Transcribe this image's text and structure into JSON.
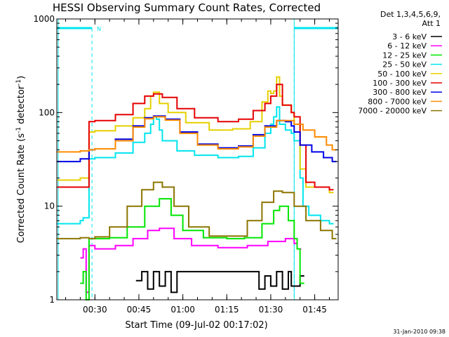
{
  "chart_data": {
    "type": "line",
    "title": "HESSI Observing Summary Count Rates, Corrected",
    "xlabel": "Start Time (09-Jul-02 00:17:02)",
    "ylabel_main": "Corrected Count Rate (s",
    "ylabel_sup1": "-1",
    "ylabel_mid": " detector",
    "ylabel_sup2": "-1",
    "ylabel_end": ")",
    "yscale": "log",
    "ylim": [
      1,
      1000
    ],
    "xlim_minutes": [
      0,
      96
    ],
    "x_ticks": [
      {
        "m": 13,
        "label": "00:30"
      },
      {
        "m": 28,
        "label": "00:45"
      },
      {
        "m": 43,
        "label": "01:00"
      },
      {
        "m": 58,
        "label": "01:15"
      },
      {
        "m": 73,
        "label": "01:30"
      },
      {
        "m": 88,
        "label": "01:45"
      }
    ],
    "y_ticks": [
      {
        "v": 1,
        "label": "1"
      },
      {
        "v": 10,
        "label": "10"
      },
      {
        "v": 100,
        "label": "100"
      },
      {
        "v": 1000,
        "label": "1000"
      }
    ],
    "legend_header": [
      "Det 1,3,4,5,6,9,",
      "Att 1"
    ],
    "timestamp": "31-Jan-2010 09:38",
    "night_marker": "N",
    "night_intervals": [
      [
        0,
        12
      ],
      [
        81,
        96
      ]
    ],
    "series": [
      {
        "name": "3 - 6 keV",
        "color": "#000000",
        "values": [
          {
            "m": 27,
            "v": 1.6
          },
          {
            "m": 29,
            "v": 2.0
          },
          {
            "m": 31,
            "v": 1.3
          },
          {
            "m": 33,
            "v": 2.0
          },
          {
            "m": 35,
            "v": 1.4
          },
          {
            "m": 37,
            "v": 2.0
          },
          {
            "m": 39,
            "v": 1.2
          },
          {
            "m": 41,
            "v": 2.0
          },
          {
            "m": 69,
            "v": 1.3
          },
          {
            "m": 71,
            "v": 1.8
          },
          {
            "m": 73,
            "v": 1.4
          },
          {
            "m": 75,
            "v": 2.0
          },
          {
            "m": 77,
            "v": 1.3
          },
          {
            "m": 79,
            "v": 2.0
          },
          {
            "m": 80,
            "v": 1.4
          },
          {
            "m": 83,
            "v": 1.8
          }
        ]
      },
      {
        "name": "6 - 12 keV",
        "color": "#ff00ff",
        "values": [
          {
            "m": 8,
            "v": 2.8
          },
          {
            "m": 9,
            "v": 3.5
          },
          {
            "m": 10,
            "v": 1.2
          },
          {
            "m": 11,
            "v": 3.8
          },
          {
            "m": 13,
            "v": 3.5
          },
          {
            "m": 20,
            "v": 3.8
          },
          {
            "m": 26,
            "v": 4.5
          },
          {
            "m": 31,
            "v": 5.5
          },
          {
            "m": 35,
            "v": 5.8
          },
          {
            "m": 40,
            "v": 4.5
          },
          {
            "m": 46,
            "v": 3.8
          },
          {
            "m": 55,
            "v": 3.6
          },
          {
            "m": 65,
            "v": 3.8
          },
          {
            "m": 72,
            "v": 4.2
          },
          {
            "m": 78,
            "v": 4.5
          },
          {
            "m": 81,
            "v": 4.0
          },
          {
            "m": 82,
            "v": 3.5
          }
        ]
      },
      {
        "name": "12 - 25 keV",
        "color": "#00e600",
        "values": [
          {
            "m": 8,
            "v": 1.5
          },
          {
            "m": 9,
            "v": 2.0
          },
          {
            "m": 10,
            "v": 1.0
          },
          {
            "m": 11,
            "v": 4.5
          },
          {
            "m": 13,
            "v": 4.5
          },
          {
            "m": 18,
            "v": 4.6
          },
          {
            "m": 24,
            "v": 6.0
          },
          {
            "m": 30,
            "v": 10.0
          },
          {
            "m": 35,
            "v": 12.0
          },
          {
            "m": 39,
            "v": 8.0
          },
          {
            "m": 43,
            "v": 5.5
          },
          {
            "m": 50,
            "v": 4.6
          },
          {
            "m": 58,
            "v": 4.5
          },
          {
            "m": 64,
            "v": 4.6
          },
          {
            "m": 70,
            "v": 6.5
          },
          {
            "m": 74,
            "v": 9.0
          },
          {
            "m": 76,
            "v": 10.0
          },
          {
            "m": 79,
            "v": 7.0
          },
          {
            "m": 81,
            "v": 4.5
          },
          {
            "m": 82,
            "v": 3.5
          },
          {
            "m": 83,
            "v": 1.5
          }
        ]
      },
      {
        "name": "25 - 50 keV",
        "color": "#00e5ee",
        "values": [
          {
            "m": 0,
            "v": 6.5
          },
          {
            "m": 8,
            "v": 7.0
          },
          {
            "m": 9,
            "v": 7.5
          },
          {
            "m": 11,
            "v": 32
          },
          {
            "m": 13,
            "v": 33
          },
          {
            "m": 20,
            "v": 37
          },
          {
            "m": 26,
            "v": 48
          },
          {
            "m": 30,
            "v": 60
          },
          {
            "m": 32,
            "v": 75
          },
          {
            "m": 33,
            "v": 90
          },
          {
            "m": 34,
            "v": 85
          },
          {
            "m": 35,
            "v": 65
          },
          {
            "m": 36,
            "v": 50
          },
          {
            "m": 41,
            "v": 39
          },
          {
            "m": 47,
            "v": 35
          },
          {
            "m": 55,
            "v": 33
          },
          {
            "m": 62,
            "v": 34
          },
          {
            "m": 67,
            "v": 42
          },
          {
            "m": 71,
            "v": 60
          },
          {
            "m": 73,
            "v": 75
          },
          {
            "m": 74,
            "v": 90
          },
          {
            "m": 75,
            "v": 115
          },
          {
            "m": 76,
            "v": 75
          },
          {
            "m": 78,
            "v": 65
          },
          {
            "m": 80,
            "v": 60
          },
          {
            "m": 81,
            "v": 50
          },
          {
            "m": 83,
            "v": 20
          },
          {
            "m": 84,
            "v": 10
          },
          {
            "m": 86,
            "v": 8
          },
          {
            "m": 90,
            "v": 7
          },
          {
            "m": 93,
            "v": 6.5
          }
        ]
      },
      {
        "name": "50 - 100 keV",
        "color": "#e6d000",
        "values": [
          {
            "m": 0,
            "v": 19
          },
          {
            "m": 8,
            "v": 20
          },
          {
            "m": 11,
            "v": 62
          },
          {
            "m": 13,
            "v": 64
          },
          {
            "m": 20,
            "v": 72
          },
          {
            "m": 26,
            "v": 88
          },
          {
            "m": 30,
            "v": 110
          },
          {
            "m": 32,
            "v": 150
          },
          {
            "m": 33,
            "v": 165
          },
          {
            "m": 35,
            "v": 125
          },
          {
            "m": 38,
            "v": 100
          },
          {
            "m": 44,
            "v": 78
          },
          {
            "m": 52,
            "v": 65
          },
          {
            "m": 60,
            "v": 67
          },
          {
            "m": 66,
            "v": 80
          },
          {
            "m": 70,
            "v": 130
          },
          {
            "m": 72,
            "v": 170
          },
          {
            "m": 73,
            "v": 160
          },
          {
            "m": 74,
            "v": 170
          },
          {
            "m": 75,
            "v": 240
          },
          {
            "m": 76,
            "v": 150
          },
          {
            "m": 77,
            "v": 120
          },
          {
            "m": 80,
            "v": 100
          },
          {
            "m": 81,
            "v": 75
          },
          {
            "m": 83,
            "v": 25
          },
          {
            "m": 85,
            "v": 16
          },
          {
            "m": 93,
            "v": 14
          }
        ]
      },
      {
        "name": "100 - 300 keV",
        "color": "#e60000",
        "values": [
          {
            "m": 0,
            "v": 16
          },
          {
            "m": 8,
            "v": 16
          },
          {
            "m": 11,
            "v": 80
          },
          {
            "m": 13,
            "v": 82
          },
          {
            "m": 20,
            "v": 95
          },
          {
            "m": 26,
            "v": 125
          },
          {
            "m": 30,
            "v": 150
          },
          {
            "m": 33,
            "v": 158
          },
          {
            "m": 36,
            "v": 145
          },
          {
            "m": 41,
            "v": 110
          },
          {
            "m": 47,
            "v": 88
          },
          {
            "m": 55,
            "v": 80
          },
          {
            "m": 62,
            "v": 85
          },
          {
            "m": 67,
            "v": 105
          },
          {
            "m": 71,
            "v": 125
          },
          {
            "m": 73,
            "v": 150
          },
          {
            "m": 75,
            "v": 200
          },
          {
            "m": 77,
            "v": 120
          },
          {
            "m": 80,
            "v": 100
          },
          {
            "m": 81,
            "v": 90
          },
          {
            "m": 83,
            "v": 45
          },
          {
            "m": 85,
            "v": 18
          },
          {
            "m": 88,
            "v": 16
          },
          {
            "m": 93,
            "v": 15
          }
        ]
      },
      {
        "name": "300 - 800 keV",
        "color": "#0000e6",
        "values": [
          {
            "m": 0,
            "v": 30
          },
          {
            "m": 8,
            "v": 32
          },
          {
            "m": 11,
            "v": 40
          },
          {
            "m": 13,
            "v": 41
          },
          {
            "m": 20,
            "v": 52
          },
          {
            "m": 26,
            "v": 72
          },
          {
            "m": 30,
            "v": 88
          },
          {
            "m": 33,
            "v": 92
          },
          {
            "m": 37,
            "v": 85
          },
          {
            "m": 42,
            "v": 62
          },
          {
            "m": 48,
            "v": 46
          },
          {
            "m": 55,
            "v": 42
          },
          {
            "m": 62,
            "v": 44
          },
          {
            "m": 67,
            "v": 58
          },
          {
            "m": 71,
            "v": 72
          },
          {
            "m": 75,
            "v": 82
          },
          {
            "m": 78,
            "v": 80
          },
          {
            "m": 80,
            "v": 72
          },
          {
            "m": 81,
            "v": 62
          },
          {
            "m": 83,
            "v": 45
          },
          {
            "m": 87,
            "v": 38
          },
          {
            "m": 91,
            "v": 33
          },
          {
            "m": 94,
            "v": 30
          }
        ]
      },
      {
        "name": "800 - 7000 keV",
        "color": "#ff8c00",
        "values": [
          {
            "m": 0,
            "v": 38
          },
          {
            "m": 8,
            "v": 39
          },
          {
            "m": 11,
            "v": 40
          },
          {
            "m": 13,
            "v": 41
          },
          {
            "m": 20,
            "v": 50
          },
          {
            "m": 26,
            "v": 70
          },
          {
            "m": 30,
            "v": 86
          },
          {
            "m": 33,
            "v": 90
          },
          {
            "m": 37,
            "v": 83
          },
          {
            "m": 42,
            "v": 60
          },
          {
            "m": 48,
            "v": 45
          },
          {
            "m": 55,
            "v": 41
          },
          {
            "m": 62,
            "v": 43
          },
          {
            "m": 67,
            "v": 56
          },
          {
            "m": 71,
            "v": 70
          },
          {
            "m": 75,
            "v": 82
          },
          {
            "m": 78,
            "v": 82
          },
          {
            "m": 81,
            "v": 75
          },
          {
            "m": 84,
            "v": 65
          },
          {
            "m": 88,
            "v": 55
          },
          {
            "m": 92,
            "v": 45
          },
          {
            "m": 94,
            "v": 40
          }
        ]
      },
      {
        "name": "7000 - 20000 keV",
        "color": "#8b7500",
        "values": [
          {
            "m": 0,
            "v": 4.5
          },
          {
            "m": 8,
            "v": 4.6
          },
          {
            "m": 11,
            "v": 4.5
          },
          {
            "m": 13,
            "v": 4.7
          },
          {
            "m": 18,
            "v": 6.0
          },
          {
            "m": 24,
            "v": 10.0
          },
          {
            "m": 29,
            "v": 15.0
          },
          {
            "m": 33,
            "v": 18.0
          },
          {
            "m": 36,
            "v": 16.0
          },
          {
            "m": 40,
            "v": 10.0
          },
          {
            "m": 45,
            "v": 6.0
          },
          {
            "m": 52,
            "v": 4.8
          },
          {
            "m": 60,
            "v": 4.8
          },
          {
            "m": 65,
            "v": 7.0
          },
          {
            "m": 70,
            "v": 11.0
          },
          {
            "m": 74,
            "v": 14.5
          },
          {
            "m": 77,
            "v": 14.0
          },
          {
            "m": 81,
            "v": 10.0
          },
          {
            "m": 85,
            "v": 7.0
          },
          {
            "m": 90,
            "v": 5.5
          },
          {
            "m": 94,
            "v": 4.5
          }
        ]
      }
    ]
  }
}
